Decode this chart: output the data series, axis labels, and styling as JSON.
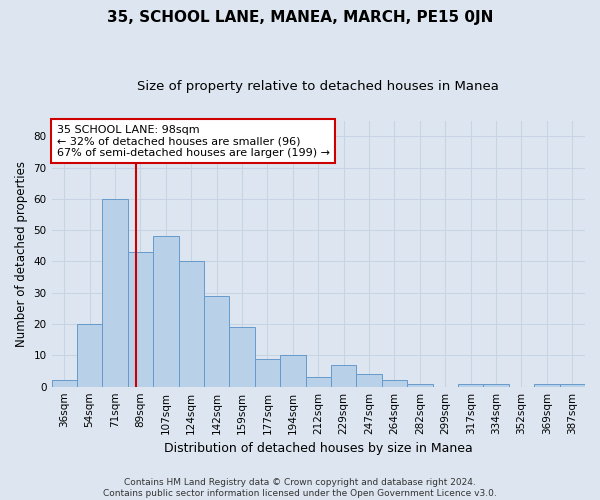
{
  "title": "35, SCHOOL LANE, MANEA, MARCH, PE15 0JN",
  "subtitle": "Size of property relative to detached houses in Manea",
  "xlabel": "Distribution of detached houses by size in Manea",
  "ylabel": "Number of detached properties",
  "categories": [
    "36sqm",
    "54sqm",
    "71sqm",
    "89sqm",
    "107sqm",
    "124sqm",
    "142sqm",
    "159sqm",
    "177sqm",
    "194sqm",
    "212sqm",
    "229sqm",
    "247sqm",
    "264sqm",
    "282sqm",
    "299sqm",
    "317sqm",
    "334sqm",
    "352sqm",
    "369sqm",
    "387sqm"
  ],
  "values": [
    2,
    20,
    60,
    43,
    48,
    40,
    29,
    19,
    9,
    10,
    3,
    7,
    4,
    2,
    1,
    0,
    1,
    1,
    0,
    1,
    1
  ],
  "bar_color": "#b8d0e8",
  "bar_edge_color": "#6699cc",
  "ylim": [
    0,
    85
  ],
  "yticks": [
    0,
    10,
    20,
    30,
    40,
    50,
    60,
    70,
    80
  ],
  "annotation_title": "35 SCHOOL LANE: 98sqm",
  "annotation_line1": "← 32% of detached houses are smaller (96)",
  "annotation_line2": "67% of semi-detached houses are larger (199) →",
  "annotation_box_color": "#ffffff",
  "annotation_border_color": "#cc0000",
  "vertical_line_color": "#cc0000",
  "grid_color": "#c8d4e4",
  "background_color": "#dde6f0",
  "footer_line1": "Contains HM Land Registry data © Crown copyright and database right 2024.",
  "footer_line2": "Contains public sector information licensed under the Open Government Licence v3.0.",
  "title_fontsize": 11,
  "subtitle_fontsize": 9.5,
  "ylabel_fontsize": 8.5,
  "xlabel_fontsize": 9,
  "tick_fontsize": 7.5,
  "annotation_fontsize": 8,
  "footer_fontsize": 6.5
}
